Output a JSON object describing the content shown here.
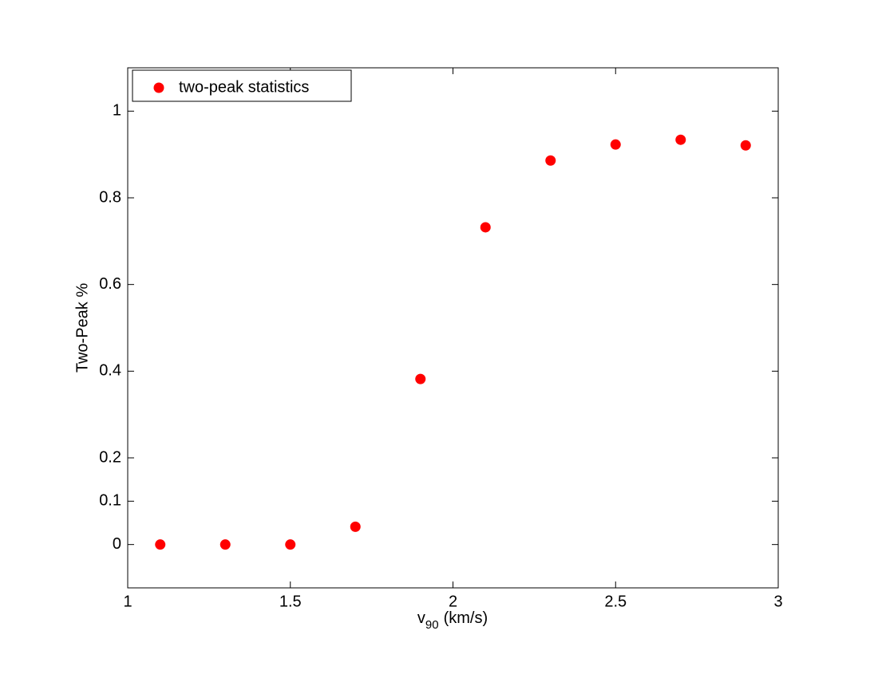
{
  "chart_data": {
    "type": "scatter",
    "xlabel": {
      "base": "v",
      "sub": "90",
      "rest": "(km/s)"
    },
    "ylabel": "Two-Peak %",
    "series": [
      {
        "name": "two-peak statistics",
        "color": "#ff0000",
        "x": [
          1.1,
          1.3,
          1.5,
          1.7,
          1.9,
          2.1,
          2.3,
          2.5,
          2.7,
          2.9
        ],
        "values": [
          0,
          0,
          0,
          0.041,
          0.382,
          0.732,
          0.886,
          0.923,
          0.934,
          0.921
        ]
      }
    ],
    "xlim": [
      1,
      3
    ],
    "xticks": [
      1,
      1.5,
      2,
      2.5,
      3
    ],
    "ylim": [
      -0.1,
      1.1
    ],
    "yticks": [
      0,
      0.1,
      0.2,
      0.4,
      0.6,
      0.8,
      1
    ],
    "legend": "upper-left",
    "grid": false
  }
}
